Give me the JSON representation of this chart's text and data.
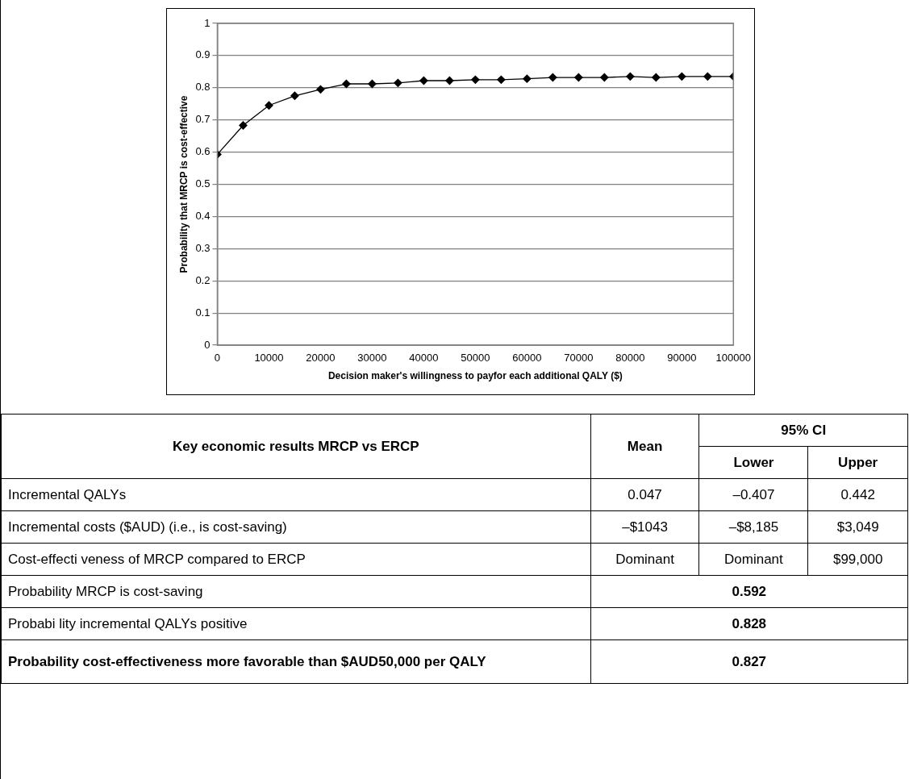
{
  "chart_data": [
    {
      "type": "line",
      "xlabel": "Decision maker's willingness to payfor each additional QALY ($)",
      "ylabel": "Probability that MRCP is cost-effective",
      "x": [
        0,
        5000,
        10000,
        15000,
        20000,
        25000,
        30000,
        35000,
        40000,
        45000,
        50000,
        55000,
        60000,
        65000,
        70000,
        75000,
        80000,
        85000,
        90000,
        95000,
        100000
      ],
      "series": [
        {
          "color": "#000000",
          "values": [
            0.593,
            0.683,
            0.745,
            0.775,
            0.795,
            0.812,
            0.812,
            0.815,
            0.822,
            0.822,
            0.825,
            0.825,
            0.828,
            0.832,
            0.832,
            0.832,
            0.835,
            0.832,
            0.835,
            0.835,
            0.835
          ]
        }
      ],
      "xlim": [
        0,
        100000
      ],
      "xticks": [
        0,
        10000,
        20000,
        30000,
        40000,
        50000,
        60000,
        70000,
        80000,
        90000,
        100000
      ],
      "ylim": [
        0,
        1
      ],
      "yticks": [
        0,
        0.1,
        0.2,
        0.3,
        0.4,
        0.5,
        0.6,
        0.7,
        0.8,
        0.9,
        1
      ],
      "grid": "y",
      "marker": "diamond",
      "line_style": "solid"
    },
    {
      "type": "other",
      "cell_labels": [
        [
          "Key economic results MRCP vs ERCP",
          "Mean",
          "95% CI",
          null
        ],
        [
          null,
          null,
          "Lower",
          "Upper"
        ],
        [
          "Incremental QALYs",
          "0.047",
          "–0.407",
          "0.442"
        ],
        [
          "Incremental costs ($AUD) (i.e., is cost-saving)",
          "–$1043",
          "–$8,185",
          "$3,049"
        ],
        [
          "Cost-effecti veness of MRCP compared to ERCP",
          "Dominant",
          "Dominant",
          "$99,000"
        ],
        [
          "Probability MRCP is cost-saving",
          "0.592",
          null,
          null
        ],
        [
          "Probabi lity incremental QALYs positive",
          "0.828",
          null,
          null
        ],
        [
          "Probability cost-effectiveness more favorable than $AUD50,000 per QALY",
          "0.827",
          null,
          null
        ]
      ]
    }
  ]
}
